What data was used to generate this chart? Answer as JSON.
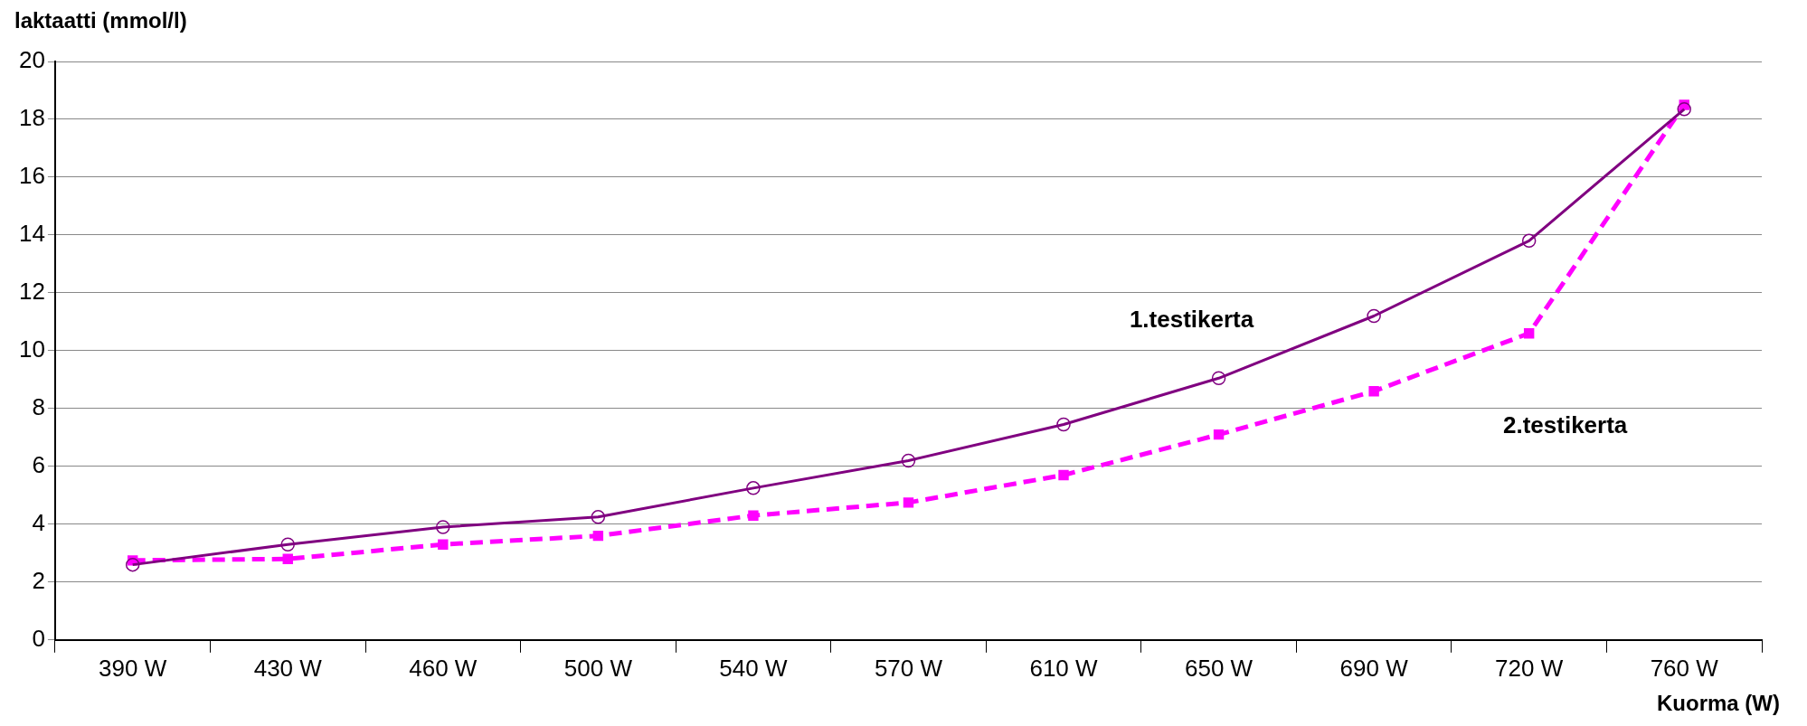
{
  "chart_data": {
    "type": "line",
    "ylabel": "laktaatti (mmol/l)",
    "xlabel": "Kuorma (W)",
    "categories": [
      "390 W",
      "430 W",
      "460 W",
      "500 W",
      "540 W",
      "570 W",
      "610 W",
      "650 W",
      "690 W",
      "720 W",
      "760 W"
    ],
    "series": [
      {
        "name": "1.testikerta",
        "color": "#800080",
        "marker": "circle",
        "line_style": "solid",
        "values": [
          2.6,
          3.3,
          3.9,
          4.25,
          5.25,
          6.2,
          7.45,
          9.05,
          11.2,
          13.8,
          18.35
        ]
      },
      {
        "name": "2.testikerta",
        "color": "#ff00ff",
        "marker": "square",
        "line_style": "dashed",
        "values": [
          2.75,
          2.8,
          3.3,
          3.6,
          4.3,
          4.75,
          5.7,
          7.1,
          8.6,
          10.6,
          18.5
        ]
      }
    ],
    "ylim": [
      0,
      20
    ],
    "yticks": [
      0,
      2,
      4,
      6,
      8,
      10,
      12,
      14,
      16,
      18,
      20
    ],
    "grid": "y",
    "legend": false
  }
}
